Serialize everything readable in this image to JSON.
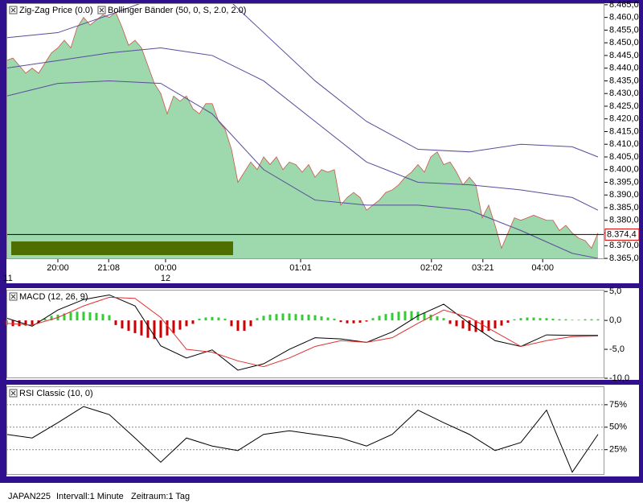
{
  "chart_data": [
    {
      "type": "area",
      "series": [
        {
          "name": "Zig-Zag Price (0.0)",
          "color": "#9dd9ad",
          "values": [
            8.443,
            8.444,
            8.441,
            8.438,
            8.44,
            8.438,
            8.442,
            8.446,
            8.448,
            8.451,
            8.448,
            8.456,
            8.46,
            8.457,
            8.459,
            8.461,
            8.46,
            8.462,
            8.456,
            8.449,
            8.451,
            8.448,
            8.441,
            8.434,
            8.43,
            8.422,
            8.429,
            8.427,
            8.429,
            8.424,
            8.422,
            8.426,
            8.426,
            8.419,
            8.416,
            8.408,
            8.395,
            8.399,
            8.403,
            8.4,
            8.405,
            8.402,
            8.405,
            8.4,
            8.403,
            8.402,
            8.399,
            8.402,
            8.397,
            8.4,
            8.399,
            8.4,
            8.386,
            8.389,
            8.391,
            8.389,
            8.384,
            8.386,
            8.388,
            8.391,
            8.392,
            8.394,
            8.397,
            8.399,
            8.402,
            8.399,
            8.405,
            8.407,
            8.402,
            8.403,
            8.399,
            8.394,
            8.397,
            8.394,
            8.381,
            8.386,
            8.378,
            8.369,
            8.375,
            8.381,
            8.38,
            8.381,
            8.382,
            8.381,
            8.38,
            8.38,
            8.376,
            8.378,
            8.375,
            8.373,
            8.372,
            8.369,
            8.375
          ]
        },
        {
          "name": "Bollinger Bänder (50, 0, S, 2.0, 2.0)",
          "color": "#5a4a9c",
          "x": [
            0,
            8,
            16,
            24,
            32,
            40,
            48,
            56,
            64,
            72,
            80,
            88,
            92
          ],
          "upper": [
            8.452,
            8.454,
            8.461,
            8.4685,
            8.473,
            8.454,
            8.435,
            8.419,
            8.408,
            8.407,
            8.41,
            8.409,
            8.405
          ],
          "middle": [
            8.44,
            8.443,
            8.446,
            8.448,
            8.445,
            8.435,
            8.419,
            8.403,
            8.395,
            8.394,
            8.392,
            8.389,
            8.384
          ],
          "lower": [
            8.429,
            8.434,
            8.435,
            8.434,
            8.422,
            8.4,
            8.388,
            8.386,
            8.386,
            8.384,
            8.376,
            8.367,
            8.365
          ]
        }
      ],
      "last_price": {
        "value": 8.3744,
        "label": "8.374,4"
      },
      "xlim": [
        0,
        92
      ],
      "xticks": [
        {
          "value": 8,
          "label": "20:00"
        },
        {
          "value": 15.9,
          "label": "21:08"
        },
        {
          "value": 24.75,
          "label": "00:00"
        },
        {
          "value": 45.75,
          "label": "01:01"
        },
        {
          "value": 66.1,
          "label": "02:02"
        },
        {
          "value": 74.1,
          "label": "03:21"
        },
        {
          "value": 83.4,
          "label": "04:00"
        }
      ],
      "date_labels": [
        {
          "value": 0.25,
          "label": "11"
        },
        {
          "value": 24.75,
          "label": "12"
        }
      ],
      "ylim": [
        8.3647,
        8.4656
      ],
      "yticks": [
        {
          "value": 8.465,
          "label": "8.465,0"
        },
        {
          "value": 8.46,
          "label": "8.460,0"
        },
        {
          "value": 8.455,
          "label": "8.455,0"
        },
        {
          "value": 8.45,
          "label": "8.450,0"
        },
        {
          "value": 8.445,
          "label": "8.445,0"
        },
        {
          "value": 8.44,
          "label": "8.440,0"
        },
        {
          "value": 8.435,
          "label": "8.435,0"
        },
        {
          "value": 8.43,
          "label": "8.430,0"
        },
        {
          "value": 8.425,
          "label": "8.425,0"
        },
        {
          "value": 8.42,
          "label": "8.420,0"
        },
        {
          "value": 8.415,
          "label": "8.415,0"
        },
        {
          "value": 8.41,
          "label": "8.410,0"
        },
        {
          "value": 8.405,
          "label": "8.405,0"
        },
        {
          "value": 8.4,
          "label": "8.400,0"
        },
        {
          "value": 8.395,
          "label": "8.395,0"
        },
        {
          "value": 8.39,
          "label": "8.390,0"
        },
        {
          "value": 8.385,
          "label": "8.385,0"
        },
        {
          "value": 8.38,
          "label": "8.380,0"
        },
        {
          "value": 8.375,
          "label": "8.375,0"
        },
        {
          "value": 8.37,
          "label": "8.370,0"
        },
        {
          "value": 8.365,
          "label": "8.365,0"
        }
      ]
    },
    {
      "type": "macd",
      "title": "MACD (12, 26, 9)",
      "histogram": {
        "positive_color": "#33cc33",
        "negative_color": "#cc0000",
        "values": [
          -0.8,
          -1.0,
          -1.0,
          -0.9,
          -0.8,
          -0.5,
          0.3,
          0.8,
          1.0,
          1.2,
          1.4,
          1.5,
          1.5,
          1.4,
          1.3,
          1.1,
          0.9,
          -0.8,
          -1.4,
          -1.8,
          -2.2,
          -2.6,
          -3.0,
          -3.2,
          -3.0,
          -2.6,
          -2.2,
          -1.6,
          -1.0,
          -0.6,
          0.3,
          0.5,
          0.6,
          0.5,
          0.3,
          -1.0,
          -1.8,
          -1.8,
          -1.0,
          0.4,
          0.8,
          1.0,
          1.1,
          1.2,
          1.2,
          1.1,
          1.0,
          1.0,
          0.9,
          0.7,
          0.5,
          0.3,
          -0.3,
          -0.5,
          -0.5,
          -0.4,
          -0.2,
          0.4,
          0.8,
          1.1,
          1.3,
          1.5,
          1.6,
          1.6,
          1.5,
          1.3,
          1.0,
          0.7,
          0.4,
          -0.6,
          -1.0,
          -1.4,
          -1.8,
          -2.0,
          -2.0,
          -1.8,
          -1.4,
          -0.9,
          -0.4,
          0.2,
          0.4,
          0.5,
          0.5,
          0.4,
          0.4,
          0.3,
          0.2,
          0.2,
          0.1,
          0.1,
          0.2,
          0.2,
          0.2
        ]
      },
      "series": [
        {
          "color": "#000000",
          "x": [
            0,
            4,
            8,
            12,
            16,
            20,
            24,
            28,
            32,
            36,
            40,
            44,
            48,
            52,
            56,
            60,
            64,
            68,
            72,
            76,
            80,
            84,
            88,
            92
          ],
          "values": [
            0.4,
            -1.0,
            1.8,
            3.6,
            4.4,
            2.5,
            -4.4,
            -6.5,
            -5.1,
            -8.6,
            -7.5,
            -5.0,
            -3.0,
            -3.2,
            -3.8,
            -2.0,
            0.8,
            2.8,
            -0.5,
            -3.5,
            -4.5,
            -2.5,
            -2.6,
            -2.6
          ]
        },
        {
          "color": "#e03030",
          "x": [
            0,
            4,
            8,
            12,
            16,
            20,
            24,
            28,
            32,
            36,
            40,
            44,
            48,
            52,
            56,
            60,
            64,
            68,
            72,
            76,
            80,
            84,
            88,
            92
          ],
          "values": [
            -0.5,
            -0.8,
            0.5,
            2.5,
            4.0,
            3.8,
            0.5,
            -5.0,
            -5.5,
            -7.0,
            -8.0,
            -6.5,
            -4.5,
            -3.5,
            -3.8,
            -3.0,
            -0.5,
            1.8,
            0.5,
            -2.0,
            -4.5,
            -3.5,
            -2.8,
            -2.7
          ]
        }
      ],
      "xlim": [
        0,
        92
      ],
      "ylim": [
        -10,
        5.3
      ],
      "yticks": [
        {
          "value": 5,
          "label": "5,0"
        },
        {
          "value": 0,
          "label": "0,0"
        },
        {
          "value": -5,
          "label": "-5,0"
        },
        {
          "value": -10,
          "label": "-10,0"
        }
      ]
    },
    {
      "type": "line",
      "title": "RSI Classic (10, 0)",
      "color": "#000000",
      "x": [
        0,
        4,
        8,
        12,
        16,
        20,
        24,
        28,
        32,
        36,
        40,
        44,
        48,
        52,
        56,
        60,
        64,
        68,
        72,
        76,
        80,
        84,
        88,
        92
      ],
      "values": [
        42,
        38,
        55,
        73,
        64,
        38,
        11,
        38,
        29,
        24,
        42,
        46,
        42,
        38,
        29,
        42,
        69,
        55,
        42,
        24,
        33,
        69,
        0,
        42
      ],
      "xlim": [
        0,
        92
      ],
      "ylim": [
        -3,
        95.5
      ],
      "grid": true,
      "yticks": [
        {
          "value": 75,
          "label": "75%"
        },
        {
          "value": 50,
          "label": "50%"
        },
        {
          "value": 25,
          "label": "25%"
        }
      ]
    }
  ],
  "status": [
    "JAPAN225",
    "Intervall:1 Minute",
    "Zeitraum:1 Tag"
  ]
}
